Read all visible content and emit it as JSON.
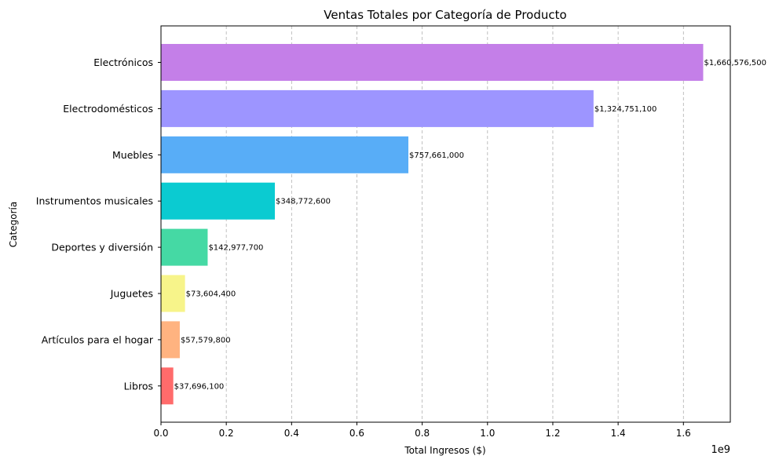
{
  "chart_data": {
    "type": "bar",
    "orientation": "horizontal",
    "title": "Ventas Totales por Categoría de Producto",
    "xlabel": "Total Ingresos ($)",
    "ylabel": "Categoría",
    "x_offset_label": "1e9",
    "xlim": [
      0,
      1743600000.0
    ],
    "x_ticks": [
      0,
      0.2,
      0.4,
      0.6,
      0.8,
      1.0,
      1.2,
      1.4,
      1.6
    ],
    "x_tick_labels": [
      "0.0",
      "0.2",
      "0.4",
      "0.6",
      "0.8",
      "1.0",
      "1.2",
      "1.4",
      "1.6"
    ],
    "x_tick_scale": 1000000000.0,
    "grid": "x-dashed",
    "categories": [
      "Electrónicos",
      "Electrodomésticos",
      "Muebles",
      "Instrumentos musicales",
      "Deportes y diversión",
      "Juguetes",
      "Artículos para el hogar",
      "Libros"
    ],
    "values": [
      1660576500,
      1324751100,
      757661000,
      348772600,
      142977700,
      73604400,
      57579800,
      37696100
    ],
    "value_labels": [
      "$1,660,576,500",
      "$1,324,751,100",
      "$757,661,000",
      "$348,772,600",
      "$142,977,700",
      "$73,604,400",
      "$57,579,800",
      "$37,696,100"
    ],
    "colors": [
      "#c47fe8",
      "#9d95ff",
      "#58adf7",
      "#0bcbd1",
      "#45d9a4",
      "#f7f48a",
      "#ffb380",
      "#ff6b6b"
    ]
  }
}
